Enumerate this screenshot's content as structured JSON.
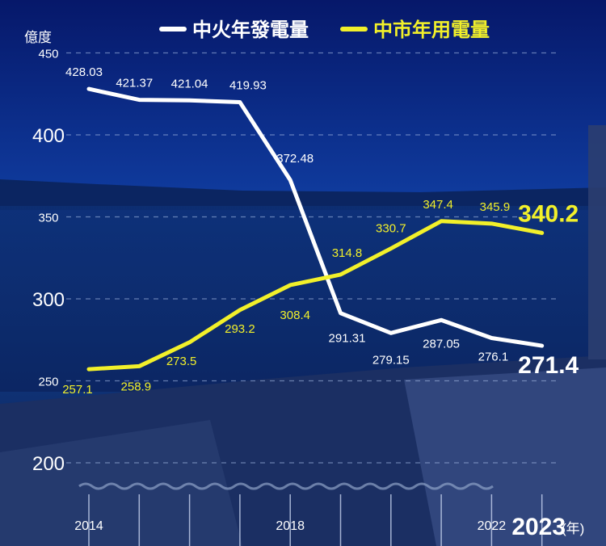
{
  "chart_data": {
    "type": "line",
    "ylabel": "億度",
    "xlabel_unit": "(年)",
    "ylim": [
      180,
      450
    ],
    "yticks": [
      200,
      250,
      300,
      350,
      400,
      450
    ],
    "x": [
      2014,
      2015,
      2016,
      2017,
      2018,
      2019,
      2020,
      2021,
      2022,
      2023
    ],
    "xtick_labels": [
      {
        "x": 2014,
        "label": "2014"
      },
      {
        "x": 2018,
        "label": "2018"
      },
      {
        "x": 2022,
        "label": "2022"
      },
      {
        "x": 2023,
        "label": "2023"
      }
    ],
    "series": [
      {
        "name": "中火年發電量",
        "color": "#ffffff",
        "values": [
          428.03,
          421.37,
          421.04,
          419.93,
          372.48,
          291.31,
          279.15,
          287.05,
          276.1,
          271.4
        ],
        "labels": [
          "428.03",
          "421.37",
          "421.04",
          "419.93",
          "372.48",
          "291.31",
          "279.15",
          "287.05",
          "276.1",
          "271.4"
        ]
      },
      {
        "name": "中市年用電量",
        "color": "#f2f02a",
        "values": [
          257.1,
          258.9,
          273.5,
          293.2,
          308.4,
          314.8,
          330.7,
          347.4,
          345.9,
          340.2
        ],
        "labels": [
          "257.1",
          "258.9",
          "273.5",
          "293.2",
          "308.4",
          "314.8",
          "330.7",
          "347.4",
          "345.9",
          "340.2"
        ]
      }
    ],
    "legend": "top",
    "grid": true
  }
}
